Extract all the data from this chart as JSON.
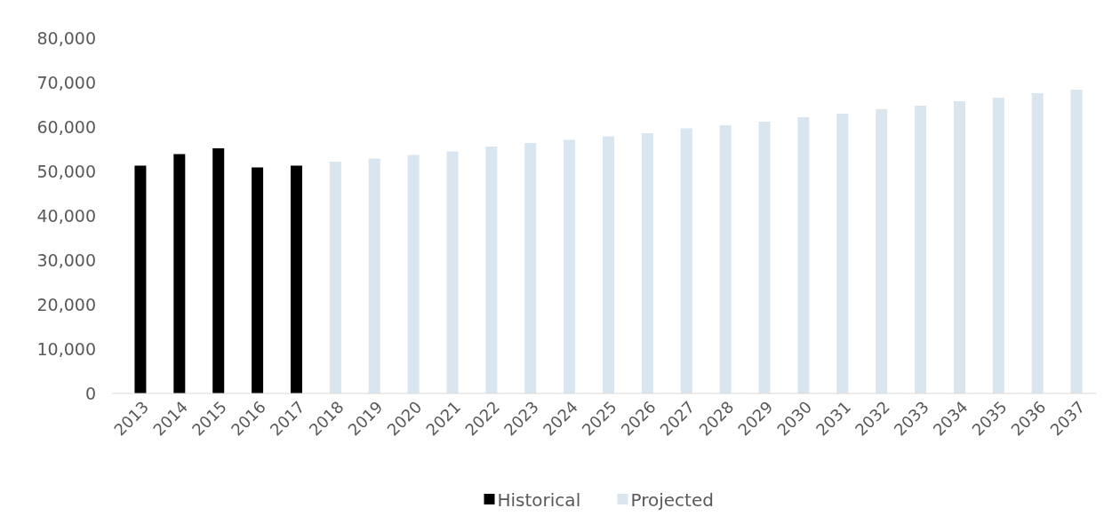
{
  "chart_data": {
    "type": "bar",
    "categories": [
      "2013",
      "2014",
      "2015",
      "2016",
      "2017",
      "2018",
      "2019",
      "2020",
      "2021",
      "2022",
      "2023",
      "2024",
      "2025",
      "2026",
      "2027",
      "2028",
      "2029",
      "2030",
      "2031",
      "2032",
      "2033",
      "2034",
      "2035",
      "2036",
      "2037"
    ],
    "series": [
      {
        "name": "Historical",
        "color": "#000000",
        "values": [
          51300,
          53900,
          55200,
          50900,
          51300,
          null,
          null,
          null,
          null,
          null,
          null,
          null,
          null,
          null,
          null,
          null,
          null,
          null,
          null,
          null,
          null,
          null,
          null,
          null,
          null
        ]
      },
      {
        "name": "Projected",
        "color": "#d9e5ef",
        "values": [
          null,
          null,
          null,
          null,
          null,
          52200,
          52900,
          53700,
          54500,
          55600,
          56400,
          57100,
          57900,
          58600,
          59700,
          60400,
          61200,
          62200,
          63000,
          64000,
          64800,
          65800,
          66600,
          67600,
          68400
        ]
      }
    ],
    "ylim": [
      0,
      80000
    ],
    "yticks": [
      {
        "value": 0,
        "label": "0"
      },
      {
        "value": 10000,
        "label": "10,000"
      },
      {
        "value": 20000,
        "label": "20,000"
      },
      {
        "value": 30000,
        "label": "30,000"
      },
      {
        "value": 40000,
        "label": "40,000"
      },
      {
        "value": 50000,
        "label": "50,000"
      },
      {
        "value": 60000,
        "label": "60,000"
      },
      {
        "value": 70000,
        "label": "70,000"
      },
      {
        "value": 80000,
        "label": "80,000"
      }
    ],
    "grid": false,
    "legend": "bottom"
  }
}
